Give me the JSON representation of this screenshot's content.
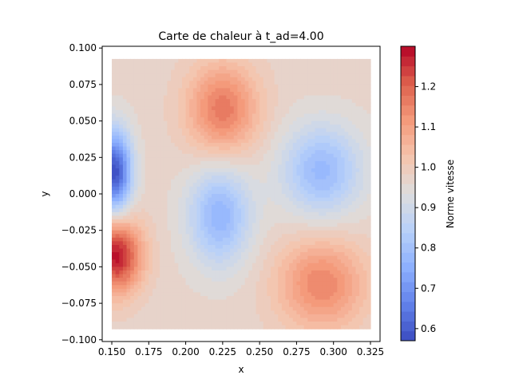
{
  "chart_data": {
    "type": "heatmap",
    "title": "Carte de chaleur à t_ad=4.00",
    "xlabel": "x",
    "ylabel": "y",
    "colorbar_label": "Norme vitesse",
    "colormap": "coolwarm",
    "xlim": [
      0.1435,
      0.3315
    ],
    "ylim": [
      -0.1012,
      0.1012
    ],
    "data_extent": {
      "x": [
        0.15,
        0.325
      ],
      "y": [
        -0.0925,
        0.0925
      ]
    },
    "value_range": [
      0.57,
      1.3
    ],
    "x_ticks": [
      {
        "value": 0.15,
        "label": "0.150"
      },
      {
        "value": 0.175,
        "label": "0.175"
      },
      {
        "value": 0.2,
        "label": "0.200"
      },
      {
        "value": 0.225,
        "label": "0.225"
      },
      {
        "value": 0.25,
        "label": "0.250"
      },
      {
        "value": 0.275,
        "label": "0.275"
      },
      {
        "value": 0.3,
        "label": "0.300"
      },
      {
        "value": 0.325,
        "label": "0.325"
      }
    ],
    "y_ticks": [
      {
        "value": 0.1,
        "label": "0.100"
      },
      {
        "value": 0.075,
        "label": "0.075"
      },
      {
        "value": 0.05,
        "label": "0.050"
      },
      {
        "value": 0.025,
        "label": "0.025"
      },
      {
        "value": 0.0,
        "label": "0.000"
      },
      {
        "value": -0.025,
        "label": "−0.025"
      },
      {
        "value": -0.05,
        "label": "−0.050"
      },
      {
        "value": -0.075,
        "label": "−0.075"
      },
      {
        "value": -0.1,
        "label": "−0.100"
      }
    ],
    "colorbar_ticks": [
      {
        "value": 0.6,
        "label": "0.6"
      },
      {
        "value": 0.7,
        "label": "0.7"
      },
      {
        "value": 0.8,
        "label": "0.8"
      },
      {
        "value": 0.9,
        "label": "0.9"
      },
      {
        "value": 1.0,
        "label": "1.0"
      },
      {
        "value": 1.1,
        "label": "1.1"
      },
      {
        "value": 1.2,
        "label": "1.2"
      }
    ],
    "field_features": [
      {
        "x": 0.153,
        "y": -0.042,
        "value": 1.29,
        "sx": 0.012,
        "sy": 0.018
      },
      {
        "x": 0.152,
        "y": 0.015,
        "value": 0.58,
        "sx": 0.008,
        "sy": 0.02
      },
      {
        "x": 0.225,
        "y": 0.058,
        "value": 1.17,
        "sx": 0.017,
        "sy": 0.022
      },
      {
        "x": 0.223,
        "y": -0.015,
        "value": 0.77,
        "sx": 0.015,
        "sy": 0.024
      },
      {
        "x": 0.292,
        "y": 0.016,
        "value": 0.78,
        "sx": 0.019,
        "sy": 0.022
      },
      {
        "x": 0.292,
        "y": -0.062,
        "value": 1.15,
        "sx": 0.021,
        "sy": 0.022
      }
    ],
    "background_value": 0.97,
    "grid": false,
    "colorbar_position": "right"
  }
}
